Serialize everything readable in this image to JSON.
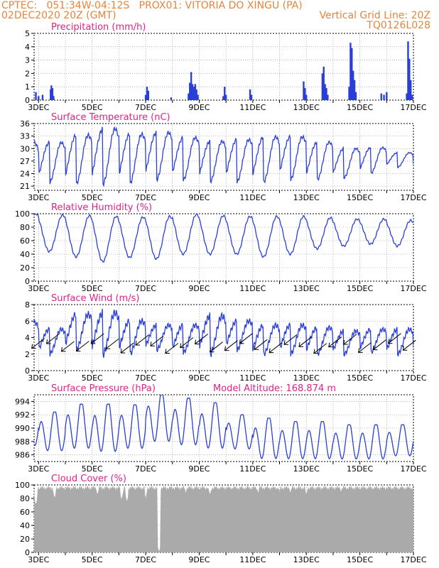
{
  "header": {
    "line1_left": "CPTEC:   051:34W-04:12S   PROX01: VITORIA DO XINGU (PA)",
    "line2_left": "02DEC2020 20Z (GMT)",
    "line2_right": "Vertical Grid Line: 20Z",
    "line3_right": "TQ0126L028"
  },
  "colors": {
    "header": "#e8843a",
    "title": "#e0218a",
    "series": "#2a3fd6",
    "cloud": "#aaaaaa",
    "arrow": "#000000",
    "grid": "#888888"
  },
  "x_tick_labels": [
    "3DEC",
    "5DEC",
    "7DEC",
    "9DEC",
    "11DEC",
    "13DEC",
    "15DEC",
    "17DEC"
  ],
  "chart_data": [
    {
      "type": "bar",
      "title": "Precipitation (mm/h)",
      "ylim": [
        0,
        5
      ],
      "yticks": [
        "0",
        "1",
        "2",
        "3",
        "4",
        "5"
      ],
      "x_range_days": [
        2.833,
        17.0
      ],
      "grid": true,
      "bars": [
        [
          2.9,
          0.6
        ],
        [
          3.0,
          0.3
        ],
        [
          3.15,
          0.4
        ],
        [
          3.45,
          0.8
        ],
        [
          3.48,
          1.1
        ],
        [
          3.52,
          0.9
        ],
        [
          3.56,
          0.3
        ],
        [
          7.0,
          0.4
        ],
        [
          7.05,
          1.0
        ],
        [
          7.1,
          0.7
        ],
        [
          7.95,
          0.2
        ],
        [
          8.6,
          0.5
        ],
        [
          8.65,
          1.3
        ],
        [
          8.7,
          2.1
        ],
        [
          8.75,
          1.2
        ],
        [
          8.8,
          1.0
        ],
        [
          8.85,
          1.2
        ],
        [
          8.9,
          0.8
        ],
        [
          8.95,
          0.4
        ],
        [
          9.9,
          0.3
        ],
        [
          9.95,
          1.0
        ],
        [
          10.0,
          0.4
        ],
        [
          10.9,
          0.8
        ],
        [
          10.95,
          0.4
        ],
        [
          12.9,
          1.4
        ],
        [
          12.95,
          0.9
        ],
        [
          13.0,
          0.4
        ],
        [
          13.6,
          2.0
        ],
        [
          13.65,
          2.5
        ],
        [
          13.7,
          1.2
        ],
        [
          13.75,
          0.9
        ],
        [
          13.8,
          0.4
        ],
        [
          14.6,
          1.0
        ],
        [
          14.65,
          4.3
        ],
        [
          14.7,
          3.9
        ],
        [
          14.75,
          2.2
        ],
        [
          14.8,
          1.5
        ],
        [
          14.85,
          0.6
        ],
        [
          15.8,
          0.5
        ],
        [
          15.9,
          0.4
        ],
        [
          16.0,
          0.6
        ],
        [
          16.75,
          0.5
        ],
        [
          16.8,
          4.4
        ],
        [
          16.85,
          3.1
        ],
        [
          16.9,
          1.5
        ],
        [
          16.95,
          0.4
        ]
      ]
    },
    {
      "type": "line",
      "title": "Surface Temperature (nC)",
      "ylim": [
        20,
        36
      ],
      "yticks": [
        "21",
        "24",
        "27",
        "30",
        "33",
        "36"
      ],
      "x_range_days": [
        2.833,
        17.0
      ],
      "grid": true,
      "diurnal": {
        "max": [
          31.3,
          31.4,
          33.2,
          34.7,
          33.4,
          33.8,
          32.6,
          31.7,
          32.1,
          32.8,
          32.8,
          31.5,
          30.0,
          30.2,
          29.0
        ],
        "min": [
          20.5,
          21.8,
          21.5,
          21.5,
          21.5,
          22.5,
          22.5,
          22.0,
          22.0,
          22.0,
          22.5,
          22.5,
          23.0,
          24.0,
          25.5
        ]
      }
    },
    {
      "type": "line",
      "title": "Relative Humidity (%)",
      "ylim": [
        0,
        100
      ],
      "yticks": [
        "0",
        "20",
        "40",
        "60",
        "80",
        "100"
      ],
      "x_range_days": [
        2.833,
        17.0
      ],
      "grid": true,
      "diurnal": {
        "max": [
          100,
          98,
          97,
          96,
          95,
          96,
          99,
          97,
          96,
          96,
          96,
          94,
          92,
          92,
          90
        ],
        "min": [
          42,
          44,
          36,
          29,
          35,
          33,
          40,
          40,
          40,
          36,
          40,
          48,
          52,
          55,
          52
        ]
      }
    },
    {
      "type": "line",
      "title": "Surface Wind (m/s)",
      "ylim": [
        0,
        8
      ],
      "yticks": [
        "0",
        "2",
        "4",
        "6",
        "8"
      ],
      "x_range_days": [
        2.833,
        17.0
      ],
      "grid": true,
      "diurnal": {
        "max": [
          5.8,
          5.0,
          6.8,
          7.0,
          6.0,
          5.5,
          5.5,
          6.6,
          6.0,
          5.5,
          5.5,
          5.2,
          4.8,
          5.0,
          5.0
        ],
        "min": [
          2.5,
          2.0,
          2.5,
          2.0,
          2.0,
          2.5,
          2.2,
          2.0,
          2.5,
          2.0,
          2.0,
          2.0,
          2.0,
          2.2,
          2.0
        ]
      },
      "arrows": {
        "count": 26,
        "note": "wind direction arrows pointing southwest"
      }
    },
    {
      "type": "line",
      "title": "Surface Pressure (hPa)",
      "annotation": "Model Altitude: 168.874 m",
      "ylim": [
        985,
        995
      ],
      "yticks": [
        "986",
        "988",
        "990",
        "992",
        "994"
      ],
      "x_range_days": [
        2.833,
        17.0
      ],
      "grid": true,
      "semidiurnal": {
        "max": [
          993.0,
          992.4,
          993.6,
          993.6,
          993.5,
          995.0,
          994.5,
          993.8,
          992.0,
          991.5,
          991.0,
          991.0,
          990.5,
          990.5,
          990.5
        ],
        "min": [
          987.0,
          986.2,
          986.5,
          986.0,
          986.5,
          987.5,
          987.0,
          986.5,
          986.5,
          985.0,
          985.0,
          985.0,
          985.0,
          985.0,
          985.5
        ]
      }
    },
    {
      "type": "area",
      "title": "Cloud Cover (%)",
      "ylim": [
        0,
        100
      ],
      "yticks": [
        "0",
        "20",
        "40",
        "60",
        "80",
        "100"
      ],
      "x_range_days": [
        2.833,
        17.0
      ],
      "grid": true,
      "typical": 96,
      "dips": [
        [
          2.9,
          70
        ],
        [
          3.6,
          80
        ],
        [
          5.2,
          85
        ],
        [
          6.1,
          78
        ],
        [
          6.3,
          75
        ],
        [
          7.0,
          80
        ],
        [
          7.5,
          0
        ],
        [
          8.5,
          88
        ],
        [
          9.4,
          85
        ],
        [
          11.2,
          88
        ],
        [
          12.0,
          90
        ],
        [
          12.4,
          88
        ],
        [
          13.0,
          85
        ],
        [
          14.3,
          90
        ]
      ]
    }
  ]
}
